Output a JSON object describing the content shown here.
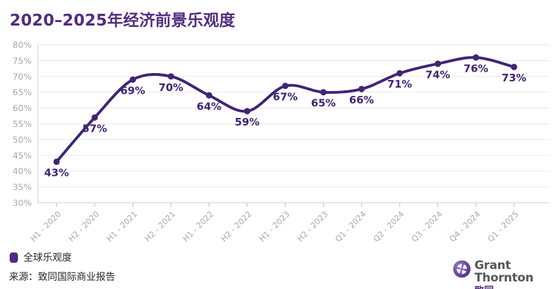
{
  "title": "2020–2025年经济前景乐观度",
  "chart_data": {
    "type": "line",
    "categories": [
      "H1 - 2020",
      "H2 - 2020",
      "H1 - 2021",
      "H2 - 2021",
      "H1 - 2022",
      "H2 - 2022",
      "H1 - 2023",
      "H2 - 2023",
      "Q1 - 2024",
      "Q2 - 2024",
      "Q3 - 2024",
      "Q4 - 2024",
      "Q1 - 2025"
    ],
    "series": [
      {
        "name": "全球乐观度",
        "values": [
          43,
          57,
          69,
          70,
          64,
          59,
          67,
          65,
          66,
          71,
          74,
          76,
          73
        ]
      }
    ],
    "value_suffix": "%",
    "ylim": [
      30,
      80
    ],
    "ytick_step": 5,
    "grid": true,
    "legend_position": "bottom-left",
    "title": "2020–2025年经济前景乐观度",
    "xlabel": "",
    "ylabel": ""
  },
  "legend": {
    "label": "全球乐观度"
  },
  "source": "来源：致同国际商业报告",
  "logo": {
    "name_en": "Grant Thornton",
    "name_cn": "致同"
  },
  "colors": {
    "title": "#4F2D7F",
    "line": "#3F2573",
    "point": "#3F2573",
    "data_label": "#3F2573",
    "grid": "#EBEBEB",
    "axis": "#D7D7D7",
    "tick": "#C9C9C9",
    "axis_text": "#A9A9A9",
    "legend_marker": "#4F2D7F",
    "logo_purple": "#4F2D7F",
    "logo_gray": "#55565A"
  }
}
